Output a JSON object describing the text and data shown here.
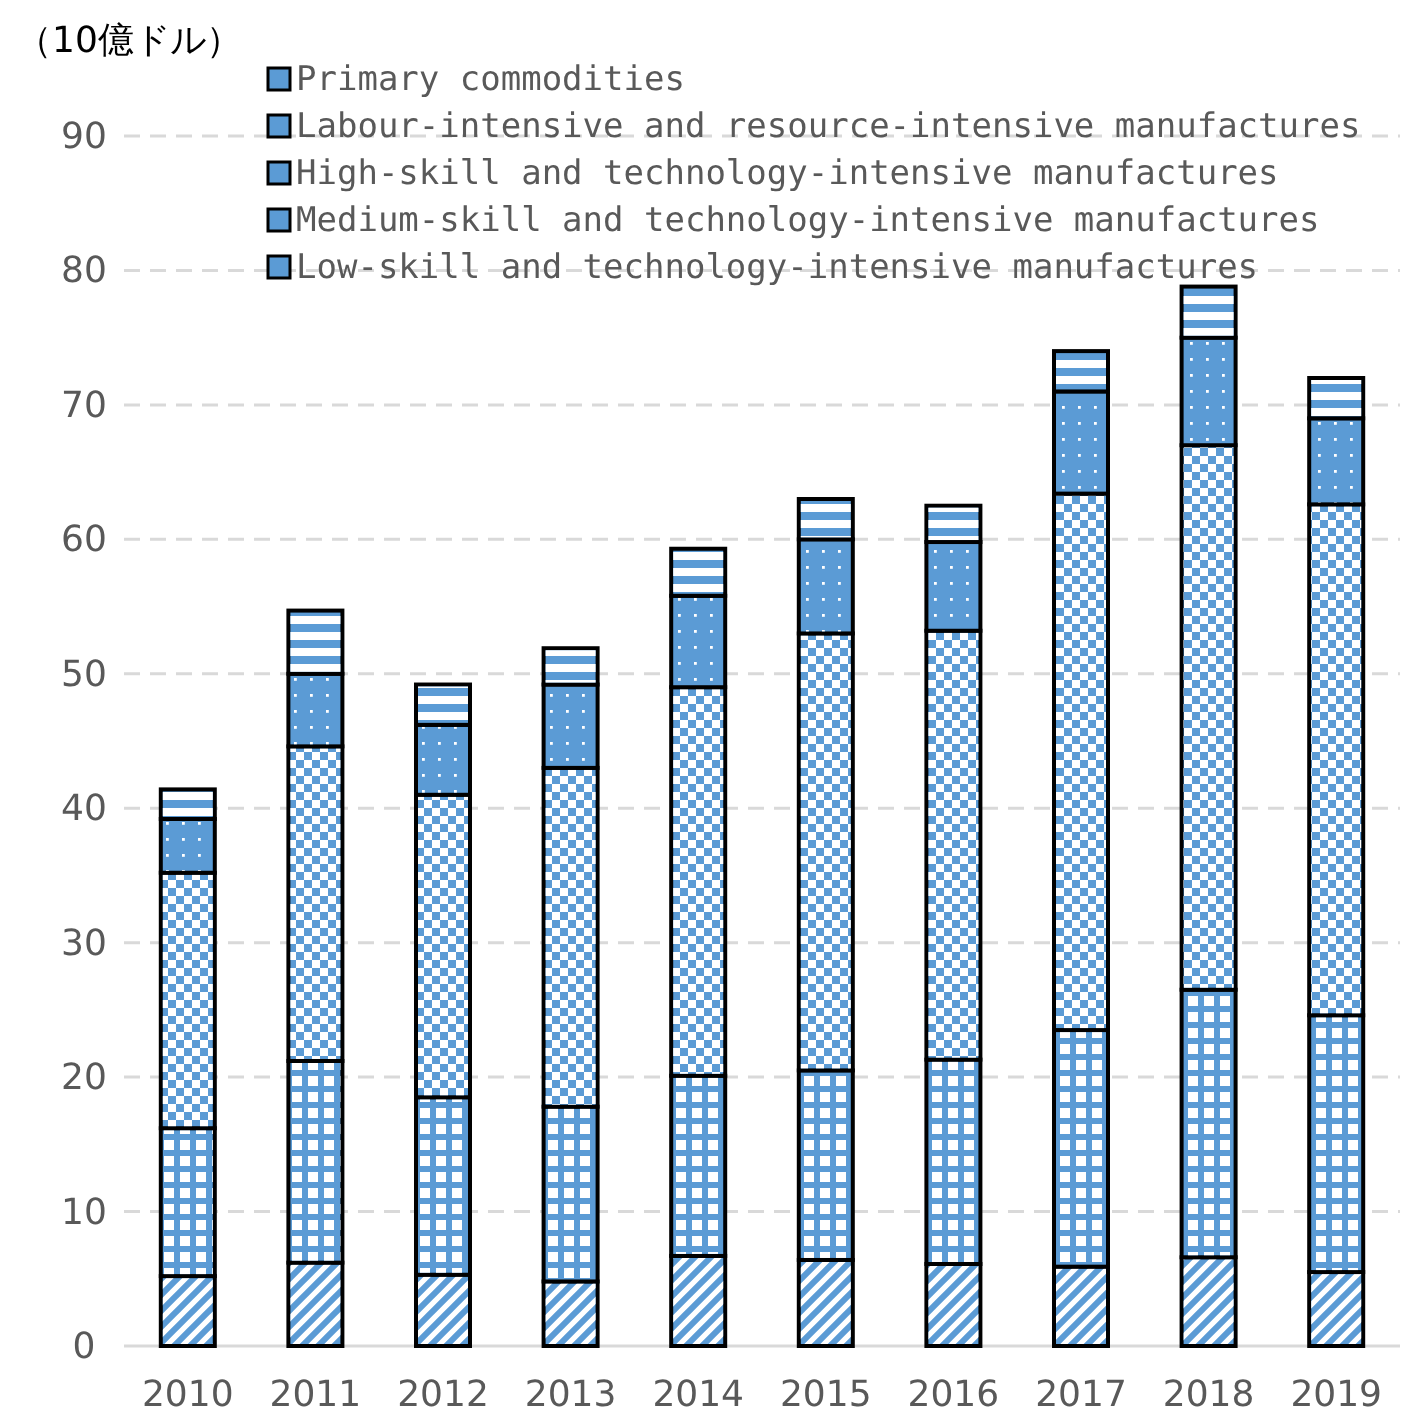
{
  "chart_data": {
    "type": "bar",
    "stacked": true,
    "ylabel": "（10億ドル）",
    "categories": [
      "2010",
      "2011",
      "2012",
      "2013",
      "2014",
      "2015",
      "2016",
      "2017",
      "2018",
      "2019"
    ],
    "series": [
      {
        "name": "Low-skill and technology-intensive manufactures",
        "color": "#5b9bd5",
        "values": [
          5.2,
          6.2,
          5.3,
          4.8,
          6.7,
          6.4,
          6.1,
          5.9,
          6.6,
          5.5
        ]
      },
      {
        "name": "Medium-skill and technology-intensive manufactures",
        "color": "#5b9bd5",
        "values": [
          11.0,
          15.0,
          13.2,
          13.0,
          13.4,
          14.1,
          15.2,
          17.6,
          19.9,
          19.1
        ]
      },
      {
        "name": "High-skill and technology-intensive manufactures",
        "color": "#5b9bd5",
        "values": [
          19.0,
          23.4,
          22.5,
          25.2,
          28.9,
          32.5,
          31.9,
          39.9,
          40.5,
          38.0
        ]
      },
      {
        "name": "Labour-intensive and resource-intensive manufactures",
        "color": "#5b9bd5",
        "values": [
          4.0,
          5.4,
          5.2,
          6.2,
          6.8,
          7.0,
          6.6,
          7.6,
          8.0,
          6.4
        ]
      },
      {
        "name": "Primary commodities",
        "color": "#5b9bd5",
        "values": [
          2.2,
          4.7,
          3.0,
          2.7,
          3.5,
          3.0,
          2.7,
          3.0,
          3.8,
          3.0
        ]
      }
    ],
    "ylim": [
      0,
      90
    ],
    "yticks": [
      0,
      10,
      20,
      30,
      40,
      50,
      60,
      70,
      80,
      90
    ],
    "grid": "y",
    "legend": "top left"
  }
}
